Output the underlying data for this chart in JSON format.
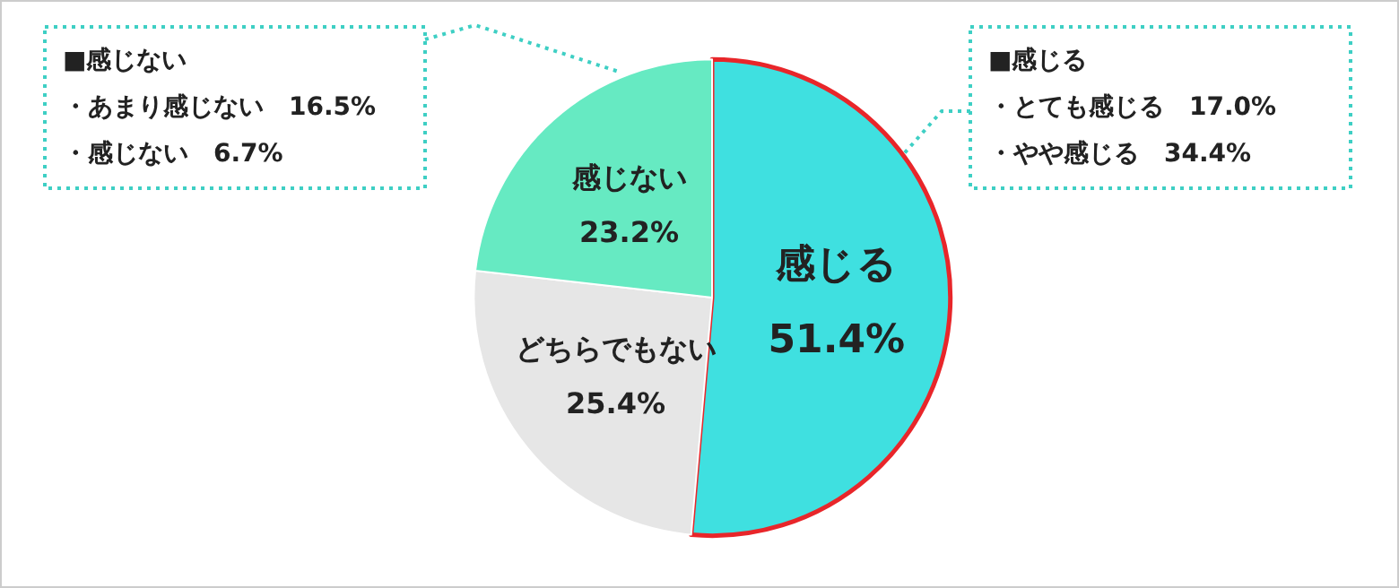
{
  "chart_data": {
    "type": "pie",
    "categories": [
      "感じる",
      "どちらでもない",
      "感じない"
    ],
    "values": [
      51.4,
      25.4,
      23.2
    ],
    "colors": [
      "#3fe0e0",
      "#e6e6e6",
      "#66eac2"
    ],
    "value_labels": [
      "51.4%",
      "25.4%",
      "23.2%"
    ],
    "legend": false,
    "annotations": [
      "■感じる",
      "・とても感じる　17.0%",
      "・やや感じる　34.4%",
      "■感じない",
      "・あまり感じない　16.5%",
      "・感じない　6.7%"
    ]
  }
}
